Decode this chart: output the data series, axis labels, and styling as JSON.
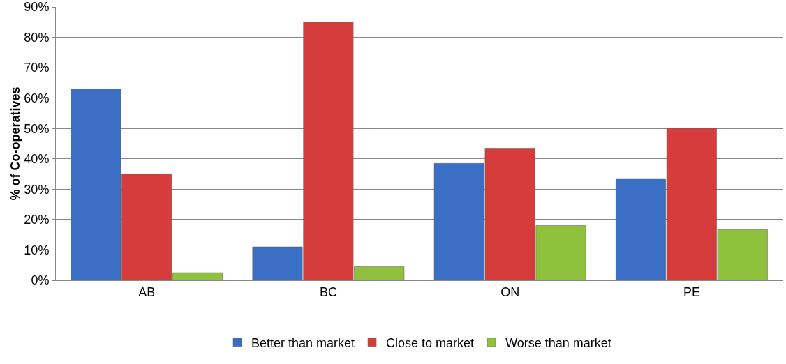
{
  "chart_data": {
    "type": "bar",
    "ylabel": "% of Co-operatives",
    "categories": [
      "AB",
      "BC",
      "ON",
      "PE"
    ],
    "series": [
      {
        "name": "Better than market",
        "color": "#3b6fc6",
        "values": [
          63,
          11,
          38.5,
          33.5
        ]
      },
      {
        "name": "Close to market",
        "color": "#d63c3c",
        "values": [
          35,
          85,
          43.5,
          50
        ]
      },
      {
        "name": "Worse than market",
        "color": "#8fc13c",
        "values": [
          2.5,
          4.5,
          18,
          16.7
        ]
      }
    ],
    "ylim": [
      0,
      90
    ],
    "yticks": [
      {
        "value": 0,
        "label": "0%"
      },
      {
        "value": 10,
        "label": "10%"
      },
      {
        "value": 20,
        "label": "20%"
      },
      {
        "value": 30,
        "label": "30%"
      },
      {
        "value": 40,
        "label": "40%"
      },
      {
        "value": 50,
        "label": "50%"
      },
      {
        "value": 60,
        "label": "60%"
      },
      {
        "value": 70,
        "label": "70%"
      },
      {
        "value": 80,
        "label": "80%"
      },
      {
        "value": 90,
        "label": "90%"
      }
    ],
    "grid": "y",
    "legend": "bottom"
  }
}
